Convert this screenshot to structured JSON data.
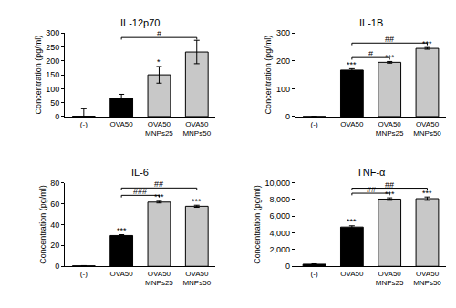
{
  "chart_data": [
    {
      "type": "bar",
      "title": "IL-12p70",
      "y_label": "Concentration (pg/ml)",
      "categories": [
        "(-)",
        "OVA50",
        "OVA50\nMNPs25",
        "OVA50\nMNPs50"
      ],
      "values": [
        1,
        65,
        150,
        232
      ],
      "errors": [
        27,
        15,
        30,
        42
      ],
      "colors": [
        "#000000",
        "#000000",
        "#c8c8c8",
        "#c8c8c8"
      ],
      "ylim": [
        0,
        300
      ],
      "yticks": [
        0,
        50,
        100,
        150,
        200,
        250,
        300
      ],
      "grid": false,
      "annotations": [
        {
          "text": "*",
          "x": "OVA50\nMNPs25",
          "y": 182
        },
        {
          "text": "#",
          "from": "OVA50",
          "to": "OVA50\nMNPs50",
          "y": 284
        }
      ]
    },
    {
      "type": "bar",
      "title": "IL-1B",
      "y_label": "Concentration (pg/ml)",
      "categories": [
        "(-)",
        "OVA50",
        "OVA50\nMNPs25",
        "OVA50\nMNPs50"
      ],
      "values": [
        0,
        167,
        195,
        245
      ],
      "errors": [
        0,
        5,
        3,
        3
      ],
      "colors": [
        "#000000",
        "#000000",
        "#c8c8c8",
        "#c8c8c8"
      ],
      "ylim": [
        0,
        300
      ],
      "yticks": [
        0,
        100,
        200,
        300
      ],
      "grid": false,
      "annotations": [
        {
          "text": "***",
          "x": "OVA50",
          "y": 174
        },
        {
          "text": "***",
          "x": "OVA50\nMNPs25",
          "y": 200
        },
        {
          "text": "***",
          "x": "OVA50\nMNPs50",
          "y": 250
        },
        {
          "text": "#",
          "from": "OVA50",
          "to": "OVA50\nMNPs25",
          "y": 212
        },
        {
          "text": "##",
          "from": "OVA50",
          "to": "OVA50\nMNPs50",
          "y": 264
        }
      ]
    },
    {
      "type": "bar",
      "title": "IL-6",
      "y_label": "Concentration (pg/ml)",
      "categories": [
        "(-)",
        "OVA50",
        "OVA50\nMNPs25",
        "OVA50\nMNPs50"
      ],
      "values": [
        0.5,
        29.5,
        61.5,
        57.5
      ],
      "errors": [
        0.2,
        0.8,
        0.8,
        1
      ],
      "colors": [
        "#000000",
        "#000000",
        "#c8c8c8",
        "#c8c8c8"
      ],
      "ylim": [
        0,
        80
      ],
      "yticks": [
        0,
        20,
        40,
        60,
        80
      ],
      "grid": false,
      "annotations": [
        {
          "text": "***",
          "x": "OVA50",
          "y": 31
        },
        {
          "text": "***",
          "x": "OVA50\nMNPs25",
          "y": 63
        },
        {
          "text": "***",
          "x": "OVA50\nMNPs50",
          "y": 59
        },
        {
          "text": "###",
          "from": "OVA50",
          "to": "OVA50\nMNPs25",
          "y": 68
        },
        {
          "text": "##",
          "from": "OVA50",
          "to": "OVA50\nMNPs50",
          "y": 75
        }
      ]
    },
    {
      "type": "bar",
      "title": "TNF-α",
      "y_label": "Concentration (pg/ml)",
      "categories": [
        "(-)",
        "OVA50",
        "OVA50\nMNPs25",
        "OVA50\nMNPs50"
      ],
      "values": [
        250,
        4700,
        8050,
        8100
      ],
      "errors": [
        50,
        150,
        150,
        200
      ],
      "colors": [
        "#000000",
        "#000000",
        "#c8c8c8",
        "#c8c8c8"
      ],
      "ylim": [
        0,
        10000
      ],
      "yticks": [
        0,
        {
          "value": 2000,
          "label": "2,000"
        },
        {
          "value": 4000,
          "label": "4,000"
        },
        {
          "value": 6000,
          "label": "6,000"
        },
        {
          "value": 8000,
          "label": "8,000"
        },
        {
          "value": 10000,
          "label": "10,000"
        }
      ],
      "grid": false,
      "annotations": [
        {
          "text": "***",
          "x": "OVA50",
          "y": 4900
        },
        {
          "text": "***",
          "x": "OVA50\nMNPs25",
          "y": 8250
        },
        {
          "text": "***",
          "x": "OVA50\nMNPs50",
          "y": 8350
        },
        {
          "text": "##",
          "from": "OVA50",
          "to": "OVA50\nMNPs25",
          "y": 8750
        },
        {
          "text": "##",
          "from": "OVA50",
          "to": "OVA50\nMNPs50",
          "y": 9350
        }
      ]
    }
  ]
}
